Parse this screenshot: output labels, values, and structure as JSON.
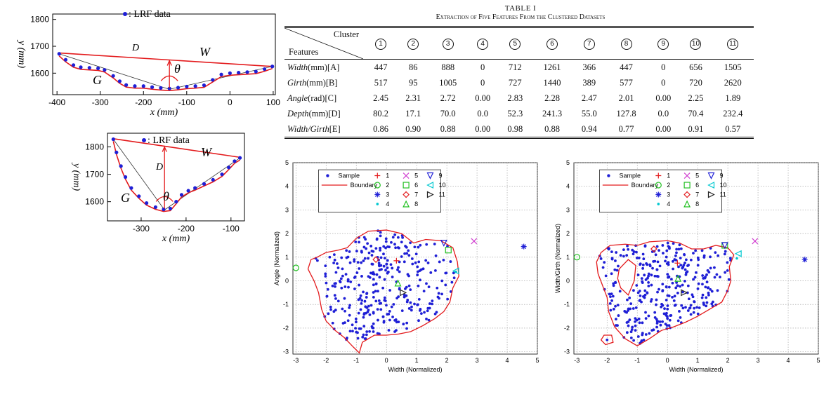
{
  "table": {
    "title": "TABLE I",
    "caption": "Extraction of Five Features From the Clustered Datasets",
    "corner_top": "Cluster",
    "corner_bottom": "Features",
    "clusters": [
      "1",
      "2",
      "3",
      "4",
      "5",
      "6",
      "7",
      "8",
      "9",
      "10",
      "11"
    ],
    "rows": [
      {
        "name": "Width",
        "unit": "(mm)[A]",
        "values": [
          "447",
          "86",
          "888",
          "0",
          "712",
          "1261",
          "366",
          "447",
          "0",
          "656",
          "1505"
        ]
      },
      {
        "name": "Girth",
        "unit": "(mm)[B]",
        "values": [
          "517",
          "95",
          "1005",
          "0",
          "727",
          "1440",
          "389",
          "577",
          "0",
          "720",
          "2620"
        ]
      },
      {
        "name": "Angle",
        "unit": "(rad)[C]",
        "values": [
          "2.45",
          "2.31",
          "2.72",
          "0.00",
          "2.83",
          "2.28",
          "2.47",
          "2.01",
          "0.00",
          "2.25",
          "1.89"
        ]
      },
      {
        "name": "Depth",
        "unit": "(mm)[D]",
        "values": [
          "80.2",
          "17.1",
          "70.0",
          "0.0",
          "52.3",
          "241.3",
          "55.0",
          "127.8",
          "0.0",
          "70.4",
          "232.4"
        ]
      },
      {
        "name": "Width/Girth",
        "unit": "[E]",
        "values": [
          "0.86",
          "0.90",
          "0.88",
          "0.00",
          "0.98",
          "0.88",
          "0.94",
          "0.77",
          "0.00",
          "0.91",
          "0.57"
        ]
      }
    ]
  },
  "chart_data": [
    {
      "type": "line",
      "legend": ": LRF data",
      "xlabel": "x (mm)",
      "ylabel": "y (mm)",
      "xlim": [
        -410,
        105
      ],
      "ylim": [
        1520,
        1820
      ],
      "xticks": [
        "-400",
        "-300",
        "-200",
        "-100",
        "0",
        "100"
      ],
      "yticks": [
        "1800",
        "1700",
        "1600"
      ],
      "xtick_values": [
        -400,
        -300,
        -200,
        -100,
        0,
        100
      ],
      "ytick_values": [
        1800,
        1700,
        1600
      ],
      "labels": {
        "D": "D",
        "W": "W",
        "G": "G",
        "theta": "θ"
      },
      "series": [
        {
          "points": [
            [
              -395,
              1672
            ],
            [
              -380,
              1650
            ],
            [
              -362,
              1630
            ],
            [
              -345,
              1622
            ],
            [
              -325,
              1620
            ],
            [
              -305,
              1618
            ],
            [
              -290,
              1612
            ],
            [
              -270,
              1590
            ],
            [
              -255,
              1570
            ],
            [
              -240,
              1556
            ],
            [
              -220,
              1552
            ],
            [
              -200,
              1552
            ],
            [
              -180,
              1548
            ],
            [
              -160,
              1545
            ],
            [
              -140,
              1543
            ],
            [
              -120,
              1546
            ],
            [
              -100,
              1550
            ],
            [
              -80,
              1552
            ],
            [
              -60,
              1555
            ],
            [
              -40,
              1575
            ],
            [
              -20,
              1595
            ],
            [
              0,
              1600
            ],
            [
              20,
              1602
            ],
            [
              40,
              1604
            ],
            [
              60,
              1606
            ],
            [
              80,
              1615
            ],
            [
              98,
              1625
            ]
          ]
        }
      ],
      "chord": [
        [
          -395,
          1675
        ],
        [
          98,
          1625
        ]
      ],
      "vertex": [
        -140,
        1540
      ]
    },
    {
      "type": "line",
      "legend": ": LRF data",
      "xlabel": "x (mm)",
      "ylabel": "y (mm)",
      "xlim": [
        -375,
        -70
      ],
      "ylim": [
        1530,
        1850
      ],
      "xticks": [
        "-300",
        "-200",
        "-100"
      ],
      "yticks": [
        "1800",
        "1700",
        "1600"
      ],
      "xtick_values": [
        -300,
        -200,
        -100
      ],
      "ytick_values": [
        1800,
        1700,
        1600
      ],
      "labels": {
        "D": "D",
        "W": "W",
        "G": "G",
        "theta": "θ"
      },
      "series": [
        {
          "points": [
            [
              -362,
              1828
            ],
            [
              -355,
              1780
            ],
            [
              -345,
              1730
            ],
            [
              -335,
              1690
            ],
            [
              -322,
              1650
            ],
            [
              -305,
              1620
            ],
            [
              -288,
              1595
            ],
            [
              -268,
              1580
            ],
            [
              -250,
              1572
            ],
            [
              -235,
              1575
            ],
            [
              -222,
              1600
            ],
            [
              -210,
              1625
            ],
            [
              -195,
              1640
            ],
            [
              -180,
              1650
            ],
            [
              -160,
              1665
            ],
            [
              -140,
              1680
            ],
            [
              -120,
              1700
            ],
            [
              -105,
              1725
            ],
            [
              -92,
              1748
            ],
            [
              -80,
              1760
            ]
          ]
        }
      ],
      "chord": [
        [
          -362,
          1830
        ],
        [
          -80,
          1762
        ]
      ],
      "vertex": [
        -248,
        1570
      ]
    },
    {
      "type": "scatter",
      "xlabel": "Width (Normalized)",
      "ylabel": "Angle (Normalized)",
      "xlim": [
        -3.1,
        5
      ],
      "ylim": [
        -3.1,
        5
      ],
      "xticks": [
        "-3",
        "-2",
        "-1",
        "0",
        "1",
        "2",
        "3",
        "4",
        "5"
      ],
      "yticks": [
        "5",
        "4",
        "3",
        "2",
        "1",
        "0",
        "-1",
        "-2",
        "-3"
      ],
      "legend": [
        "Sample",
        "Boundary",
        "1",
        "2",
        "3",
        "4",
        "5",
        "6",
        "7",
        "8",
        "9",
        "10",
        "11"
      ],
      "clusters": [
        [
          0.33,
          0.85
        ],
        [
          -3.0,
          0.55
        ],
        [
          4.55,
          1.45
        ],
        [
          2.3,
          0.38
        ],
        [
          2.9,
          1.68
        ],
        [
          2.05,
          1.3
        ],
        [
          -0.35,
          0.9
        ],
        [
          0.38,
          -0.1
        ],
        [
          1.9,
          1.6
        ],
        [
          2.3,
          0.42
        ],
        [
          0.55,
          -0.5
        ]
      ],
      "boundary": [
        [
          -2.3,
          1.0
        ],
        [
          -2.0,
          1.2
        ],
        [
          -1.6,
          1.3
        ],
        [
          -1.3,
          1.4
        ],
        [
          -1.0,
          1.8
        ],
        [
          -0.6,
          2.1
        ],
        [
          0,
          2.15
        ],
        [
          0.5,
          2.0
        ],
        [
          0.9,
          1.6
        ],
        [
          1.3,
          1.75
        ],
        [
          1.8,
          1.7
        ],
        [
          2.2,
          1.4
        ],
        [
          2.35,
          0.8
        ],
        [
          2.4,
          0.2
        ],
        [
          2.2,
          -0.3
        ],
        [
          2.1,
          -0.9
        ],
        [
          1.9,
          -1.3
        ],
        [
          1.6,
          -1.6
        ],
        [
          1.2,
          -1.9
        ],
        [
          0.8,
          -2.15
        ],
        [
          0.4,
          -2.25
        ],
        [
          0,
          -2.3
        ],
        [
          -0.4,
          -2.3
        ],
        [
          -0.8,
          -2.6
        ],
        [
          -0.9,
          -3.05
        ],
        [
          -1.1,
          -2.8
        ],
        [
          -1.4,
          -2.4
        ],
        [
          -1.7,
          -2.1
        ],
        [
          -2.0,
          -1.7
        ],
        [
          -2.15,
          -1.2
        ],
        [
          -2.25,
          -0.5
        ],
        [
          -2.4,
          0
        ],
        [
          -2.6,
          0.5
        ],
        [
          -2.5,
          0.9
        ]
      ]
    },
    {
      "type": "scatter",
      "xlabel": "Width (Normalized)",
      "ylabel": "Width/Girth (Normalized)",
      "xlim": [
        -3.1,
        5
      ],
      "ylim": [
        -3.1,
        5
      ],
      "xticks": [
        "-3",
        "-2",
        "-1",
        "0",
        "1",
        "2",
        "3",
        "4",
        "5"
      ],
      "yticks": [
        "5",
        "4",
        "3",
        "2",
        "1",
        "0",
        "-1",
        "-2",
        "-3"
      ],
      "legend": [
        "Sample",
        "Boundary",
        "1",
        "2",
        "3",
        "4",
        "5",
        "6",
        "7",
        "8",
        "9",
        "10",
        "11"
      ],
      "clusters": [
        [
          0.33,
          0.75
        ],
        [
          -3.0,
          1.0
        ],
        [
          4.55,
          0.9
        ],
        [
          2.3,
          0.95
        ],
        [
          2.9,
          1.68
        ],
        [
          1.9,
          1.5
        ],
        [
          -0.45,
          1.35
        ],
        [
          0.35,
          0.1
        ],
        [
          1.9,
          1.5
        ],
        [
          2.35,
          1.15
        ],
        [
          0.55,
          -0.5
        ]
      ],
      "boundary": [
        [
          -2.2,
          1.2
        ],
        [
          -1.9,
          1.5
        ],
        [
          -1.4,
          1.55
        ],
        [
          -1.0,
          1.5
        ],
        [
          -0.6,
          1.65
        ],
        [
          0,
          1.7
        ],
        [
          0.4,
          1.6
        ],
        [
          0.8,
          1.35
        ],
        [
          1.2,
          1.35
        ],
        [
          1.6,
          1.5
        ],
        [
          2.0,
          1.4
        ],
        [
          2.2,
          1.1
        ],
        [
          2.05,
          0.6
        ],
        [
          2.1,
          0
        ],
        [
          2.0,
          -0.4
        ],
        [
          1.8,
          -0.9
        ],
        [
          1.4,
          -1.2
        ],
        [
          1.0,
          -1.5
        ],
        [
          0.6,
          -1.75
        ],
        [
          0.2,
          -1.95
        ],
        [
          -0.2,
          -2.1
        ],
        [
          -0.6,
          -2.45
        ],
        [
          -1.0,
          -2.75
        ],
        [
          -1.4,
          -2.45
        ],
        [
          -1.75,
          -1.95
        ],
        [
          -1.95,
          -1.3
        ],
        [
          -2.0,
          -0.7
        ],
        [
          -2.15,
          -0.2
        ],
        [
          -2.3,
          0.3
        ],
        [
          -2.35,
          0.8
        ]
      ],
      "hole": [
        [
          -1.6,
          0.5
        ],
        [
          -1.3,
          0.9
        ],
        [
          -1.05,
          0.65
        ],
        [
          -1.1,
          0.0
        ],
        [
          -1.3,
          -0.6
        ],
        [
          -1.55,
          -0.3
        ],
        [
          -1.65,
          0.1
        ]
      ],
      "island": [
        [
          -2.1,
          -2.3
        ],
        [
          -1.85,
          -2.3
        ],
        [
          -1.8,
          -2.6
        ],
        [
          -2.05,
          -2.7
        ],
        [
          -2.2,
          -2.5
        ]
      ]
    }
  ]
}
